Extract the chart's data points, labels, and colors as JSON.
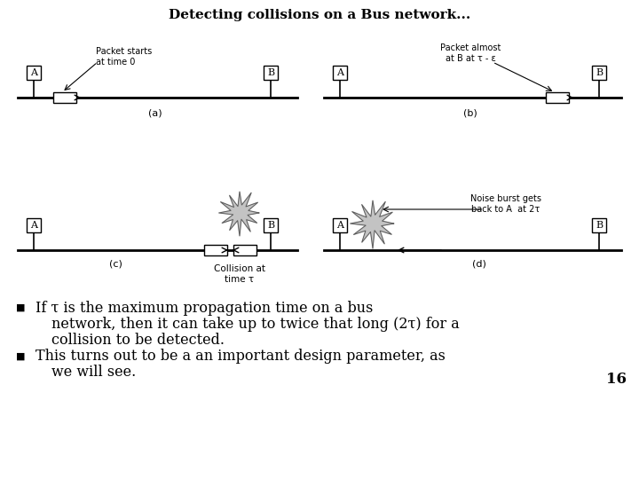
{
  "title": "Detecting collisions on a Bus network...",
  "title_fontsize": 11,
  "title_fontweight": "bold",
  "background_color": "#ffffff",
  "text_color": "#000000",
  "bullet1_line1": "If τ is the maximum propagation time on a bus",
  "bullet1_line2": "network, then it can take up to twice that long (2τ) for a",
  "bullet1_line3": "collision to be detected.",
  "bullet2_line1": "This turns out to be a an important design parameter, as",
  "bullet2_line2": "we will see.",
  "page_number": "16",
  "label_a": "A",
  "label_b": "B",
  "sub_a": "(a)",
  "sub_b": "(b)",
  "sub_c": "(c)",
  "sub_d": "(d)",
  "text_packet_starts": "Packet starts\nat time 0",
  "text_packet_almost": "Packet almost\nat B at τ - ε",
  "text_collision": "Collision at\ntime τ",
  "text_noise_burst": "Noise burst gets\nback to A  at 2τ"
}
